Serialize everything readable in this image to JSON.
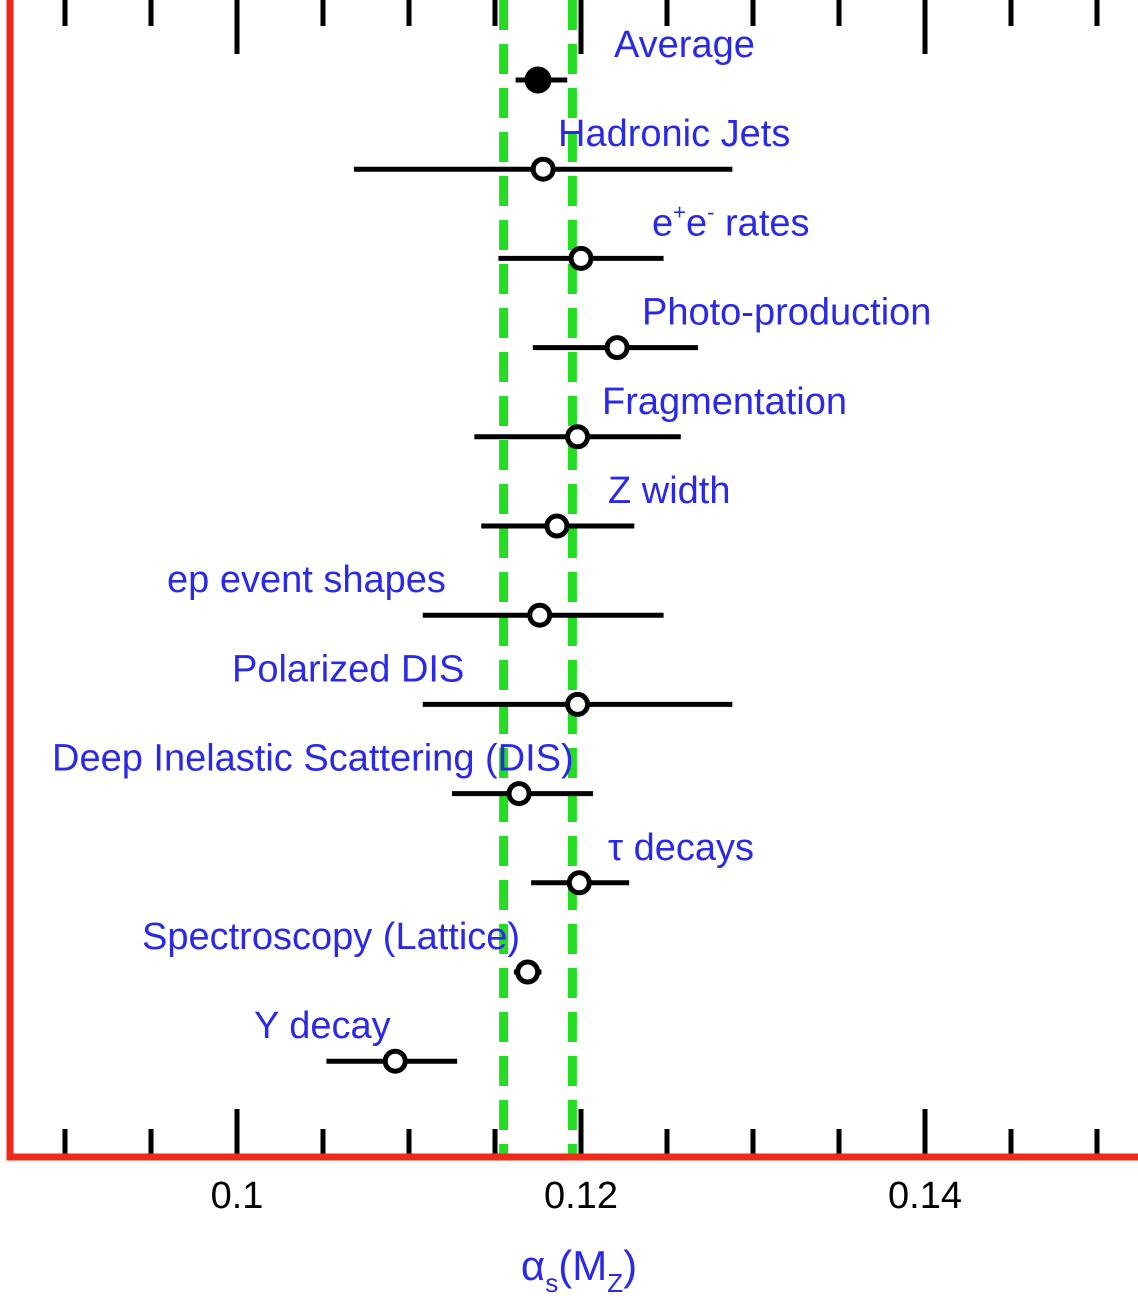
{
  "chart_data": {
    "type": "scatter",
    "title": "",
    "xlabel": "αs(MZ)",
    "xlabel_parts": {
      "main": "α",
      "sub1": "s",
      "open": "(M",
      "sub2": "Z",
      "close": ")"
    },
    "xlim": [
      0.08,
      0.152
    ],
    "x_tick_labels": [
      "0.1",
      "0.12",
      "0.14"
    ],
    "x_tick_values": [
      0.1,
      0.12,
      0.14
    ],
    "minor_ticks": [
      0.085,
      0.09,
      0.095,
      0.105,
      0.11,
      0.115,
      0.125,
      0.13,
      0.135,
      0.145,
      0.15
    ],
    "major_ticks": [
      0.1,
      0.12,
      0.14
    ],
    "grid": false,
    "band": {
      "low": 0.1155,
      "high": 0.1195,
      "color": "#22dd22"
    },
    "frame_color": "#ee2a1a",
    "label_color": "#2a2ae6",
    "points": [
      {
        "label": "Average",
        "value": 0.1175,
        "err_low": 0.1162,
        "err_high": 0.1192,
        "filled": true
      },
      {
        "label": "Hadronic Jets",
        "value": 0.1178,
        "err_low": 0.1068,
        "err_high": 0.1288,
        "filled": false
      },
      {
        "label": "e+e- rates",
        "label_html": {
          "base1": "e",
          "sup1": "+",
          "base2": "e",
          "sup2": "-",
          "rest": " rates"
        },
        "value": 0.12,
        "err_low": 0.1152,
        "err_high": 0.1248,
        "filled": false
      },
      {
        "label": "Photo-production",
        "value": 0.1221,
        "err_low": 0.1172,
        "err_high": 0.1268,
        "filled": false
      },
      {
        "label": "Fragmentation",
        "value": 0.1198,
        "err_low": 0.1138,
        "err_high": 0.1258,
        "filled": false
      },
      {
        "label": "Z width",
        "value": 0.1186,
        "err_low": 0.1142,
        "err_high": 0.1231,
        "filled": false
      },
      {
        "label": "ep event shapes",
        "value": 0.1176,
        "err_low": 0.1108,
        "err_high": 0.1248,
        "filled": false
      },
      {
        "label": "Polarized DIS",
        "value": 0.1198,
        "err_low": 0.1108,
        "err_high": 0.1288,
        "filled": false
      },
      {
        "label": "Deep Inelastic Scattering (DIS)",
        "value": 0.1164,
        "err_low": 0.1125,
        "err_high": 0.1207,
        "filled": false
      },
      {
        "label": "τ decays",
        "value": 0.1199,
        "err_low": 0.1171,
        "err_high": 0.1228,
        "filled": false
      },
      {
        "label": "Spectroscopy (Lattice)",
        "value": 0.1169,
        "err_low": 0.1161,
        "err_high": 0.1177,
        "filled": false
      },
      {
        "label": "Υ decay",
        "value": 0.1092,
        "err_low": 0.1052,
        "err_high": 0.1128,
        "filled": false
      }
    ]
  }
}
